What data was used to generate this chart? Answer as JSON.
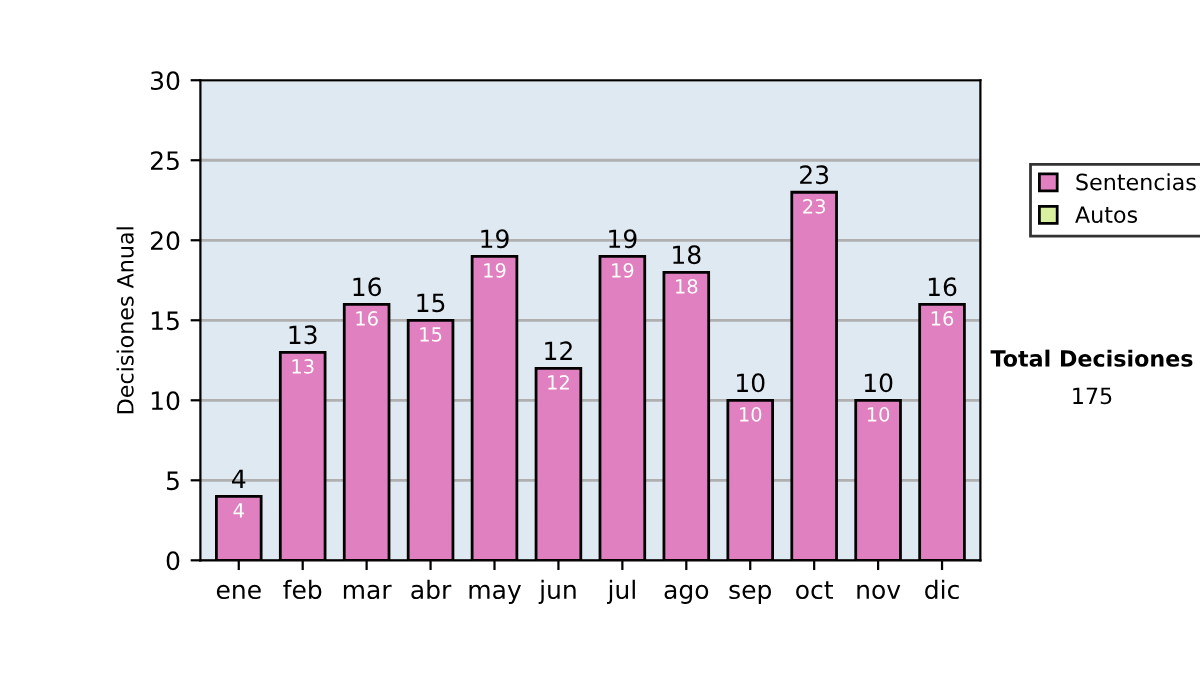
{
  "chart_data": {
    "type": "bar",
    "stacked": true,
    "ylabel": "Decisiones Anual",
    "categories": [
      "ene",
      "feb",
      "mar",
      "abr",
      "may",
      "jun",
      "jul",
      "ago",
      "sep",
      "oct",
      "nov",
      "dic"
    ],
    "series": [
      {
        "name": "Sentencias",
        "color": "#e080c0",
        "values": [
          4,
          13,
          16,
          15,
          19,
          12,
          19,
          18,
          10,
          23,
          10,
          16
        ],
        "value_labels": [
          "4",
          "13",
          "16",
          "15",
          "19",
          "12",
          "19",
          "18",
          "10",
          "23",
          "10",
          "16"
        ]
      },
      {
        "name": "Autos",
        "color": "#d8f0a0",
        "values": [
          0,
          0,
          0,
          0,
          0,
          0,
          0,
          0,
          0,
          0,
          0,
          0
        ]
      }
    ],
    "totals": [
      "4",
      "13",
      "16",
      "15",
      "19",
      "12",
      "19",
      "18",
      "10",
      "23",
      "10",
      "16"
    ],
    "ylim": [
      0,
      30
    ],
    "yticks": [
      0,
      5,
      10,
      15,
      20,
      25,
      30
    ],
    "grid": "y",
    "legend": "right",
    "annotations": [
      "Total Decisiones",
      "175"
    ]
  }
}
